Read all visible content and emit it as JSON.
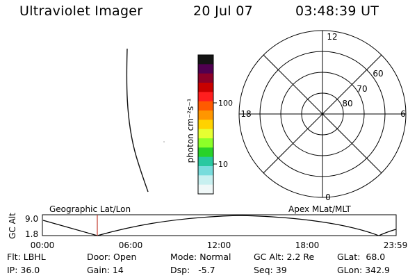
{
  "header": {
    "title": "Ultraviolet Imager",
    "date": "20 Jul 07",
    "time": "03:48:39 UT"
  },
  "colorbar": {
    "unit_label": "photon cm⁻²s⁻¹",
    "tick_100": "100",
    "tick_10": "10",
    "colors": [
      "#141414",
      "#500050",
      "#8c0028",
      "#c80000",
      "#ff1e1e",
      "#ff5a00",
      "#ff9600",
      "#ffd200",
      "#e6ff32",
      "#8cff28",
      "#28d228",
      "#28c8a0",
      "#78dcdc",
      "#c8f0f0",
      "#f0f8f8"
    ]
  },
  "polar_plot": {
    "mlt_labels": {
      "top": "12",
      "bottom": "0",
      "left": "18",
      "right": "6"
    },
    "lat_labels": [
      "60",
      "70",
      "80"
    ]
  },
  "timeline": {
    "ylabel": "GC Alt",
    "y_ticks": [
      "9.0",
      "1.8"
    ],
    "left_title": "Geographic Lat/Lon",
    "right_title": "Apex MLat/MLT",
    "x_ticks": [
      "00:00",
      "06:00",
      "12:00",
      "18:00",
      "23:59"
    ],
    "current_time_hours": 3.81,
    "marker_color": "#c0392b"
  },
  "info": {
    "flt": "Flt: LBHL",
    "ip": "IP: 36.0",
    "door": "Door: Open",
    "gain": "Gain: 14",
    "mode": "Mode: Normal",
    "dsp": "Dsp:   -5.7",
    "gc_alt": "GC Alt: 2.2 Re",
    "seq": "Seq: 39",
    "glat": "GLat:  68.0",
    "glon": "GLon: 342.9"
  }
}
